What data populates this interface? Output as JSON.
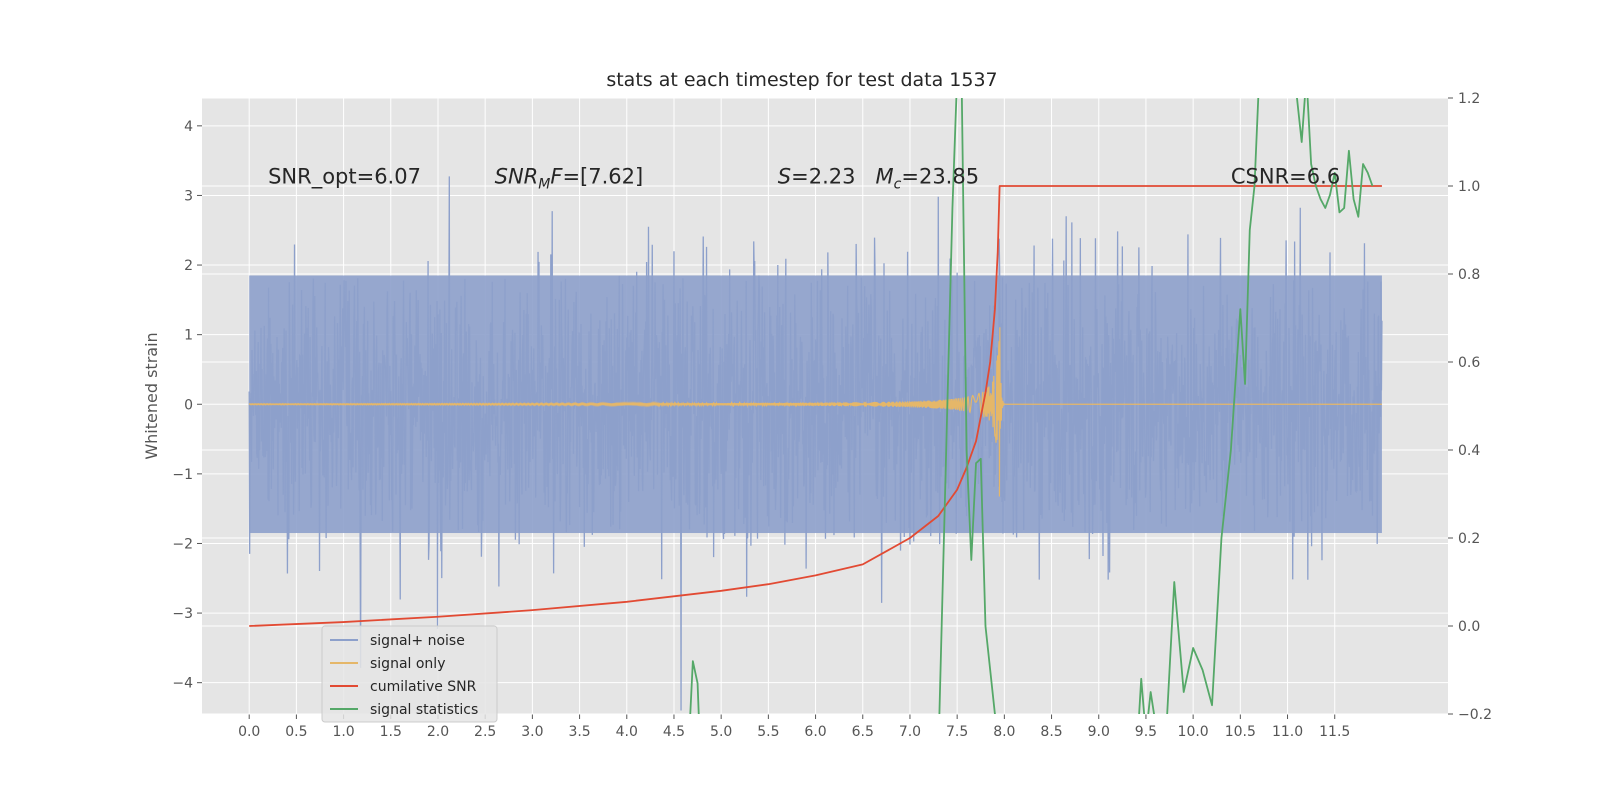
{
  "chart_data": {
    "type": "line",
    "title": "stats at each timestep for test data 1537",
    "ylabel": "Whitened strain",
    "y2label": "",
    "xlim": [
      -0.5,
      12.7
    ],
    "ylim": [
      -4.45,
      4.4
    ],
    "y2lim": [
      -0.2,
      1.2
    ],
    "xticks": [
      0.0,
      0.5,
      1.0,
      1.5,
      2.0,
      2.5,
      3.0,
      3.5,
      4.0,
      4.5,
      5.0,
      5.5,
      6.0,
      6.5,
      7.0,
      7.5,
      8.0,
      8.5,
      9.0,
      9.5,
      10.0,
      10.5,
      11.0,
      11.5
    ],
    "xtick_labels": [
      "0.0",
      "0.5",
      "1.0",
      "1.5",
      "2.0",
      "2.5",
      "3.0",
      "3.5",
      "4.0",
      "4.5",
      "5.0",
      "5.5",
      "6.0",
      "6.5",
      "7.0",
      "7.5",
      "8.0",
      "8.5",
      "9.0",
      "9.5",
      "10.0",
      "10.5",
      "11.0",
      "11.5"
    ],
    "yticks": [
      4,
      3,
      2,
      1,
      0,
      -1,
      -2,
      -3,
      -4
    ],
    "ytick_labels": [
      "4",
      "3",
      "2",
      "1",
      "0",
      "−1",
      "−2",
      "−3",
      "−4"
    ],
    "y2ticks": [
      1.2,
      1.0,
      0.8,
      0.6,
      0.4,
      0.2,
      0.0,
      -0.2
    ],
    "y2tick_labels": [
      "1.2",
      "1.0",
      "0.8",
      "0.6",
      "0.4",
      "0.2",
      "0.0",
      "−0.2"
    ],
    "grid": true,
    "legend_position": "lower-left",
    "annotations": [
      {
        "x": 0.2,
        "y": 3.2,
        "parts": [
          {
            "t": "SNR_opt=6.07",
            "i": false
          }
        ]
      },
      {
        "x": 2.6,
        "y": 3.2,
        "parts": [
          {
            "t": "SNR",
            "i": true
          },
          {
            "t": "M",
            "i": true,
            "sub": true
          },
          {
            "t": "F",
            "i": true
          },
          {
            "t": "=[7.62]",
            "i": false
          }
        ]
      },
      {
        "x": 5.6,
        "y": 3.2,
        "parts": [
          {
            "t": "S",
            "i": true
          },
          {
            "t": "=2.23   ",
            "i": false
          },
          {
            "t": "M",
            "i": true
          },
          {
            "t": "c",
            "i": true,
            "sub": true
          },
          {
            "t": "=23.85",
            "i": false
          }
        ]
      },
      {
        "x": 10.4,
        "y": 3.2,
        "parts": [
          {
            "t": "CSNR=6.6",
            "i": false
          }
        ]
      }
    ],
    "series": [
      {
        "name": "signal+ noise",
        "axis": "left",
        "color": "#8DA0CB",
        "kind": "noise",
        "x_range": [
          0.0,
          12.0
        ],
        "sigma": 0.95,
        "band": [
          -1.85,
          1.85
        ]
      },
      {
        "name": "signal only",
        "axis": "left",
        "color": "#E5B769",
        "kind": "chirp",
        "x_range": [
          0.0,
          12.0
        ],
        "x_merger": 7.95,
        "peak_amplitude": 1.45
      },
      {
        "name": "cumilative SNR",
        "axis": "right",
        "color": "#E24A33",
        "x": [
          0.0,
          1.0,
          2.0,
          3.0,
          4.0,
          5.0,
          5.5,
          6.0,
          6.5,
          7.0,
          7.3,
          7.5,
          7.6,
          7.7,
          7.8,
          7.85,
          7.9,
          7.93,
          7.95,
          8.5,
          12.0
        ],
        "values": [
          0.0,
          0.009,
          0.021,
          0.036,
          0.055,
          0.08,
          0.095,
          0.115,
          0.14,
          0.2,
          0.25,
          0.31,
          0.36,
          0.42,
          0.53,
          0.6,
          0.72,
          0.85,
          1.0,
          1.0,
          1.0
        ]
      },
      {
        "name": "signal statistics",
        "axis": "right",
        "color": "#55A868",
        "x": [
          4.65,
          4.7,
          4.75,
          4.78,
          7.3,
          7.45,
          7.5,
          7.55,
          7.6,
          7.65,
          7.7,
          7.75,
          7.8,
          7.9,
          8.0,
          9.3,
          9.4,
          9.45,
          9.5,
          9.55,
          9.6,
          9.65,
          9.7,
          9.8,
          9.9,
          10.0,
          10.1,
          10.2,
          10.3,
          10.4,
          10.5,
          10.55,
          10.6,
          10.65,
          10.7,
          10.8,
          10.9,
          11.0,
          11.1,
          11.15,
          11.2,
          11.25,
          11.3,
          11.35,
          11.4,
          11.45,
          11.5,
          11.55,
          11.6,
          11.65,
          11.7,
          11.75,
          11.8,
          11.85,
          11.9
        ],
        "values": [
          -0.3,
          -0.08,
          -0.13,
          -0.3,
          -0.3,
          0.95,
          1.25,
          1.2,
          0.4,
          0.15,
          0.37,
          0.38,
          0.0,
          -0.2,
          -0.3,
          -0.3,
          -0.3,
          -0.12,
          -0.25,
          -0.15,
          -0.22,
          -0.24,
          -0.3,
          0.1,
          -0.15,
          -0.05,
          -0.1,
          -0.18,
          0.2,
          0.4,
          0.72,
          0.55,
          0.9,
          1.0,
          1.25,
          1.3,
          1.25,
          1.4,
          1.2,
          1.1,
          1.25,
          1.05,
          1.0,
          0.97,
          0.95,
          0.98,
          1.03,
          0.94,
          0.95,
          1.08,
          0.97,
          0.93,
          1.05,
          1.03,
          1.0
        ]
      }
    ]
  }
}
